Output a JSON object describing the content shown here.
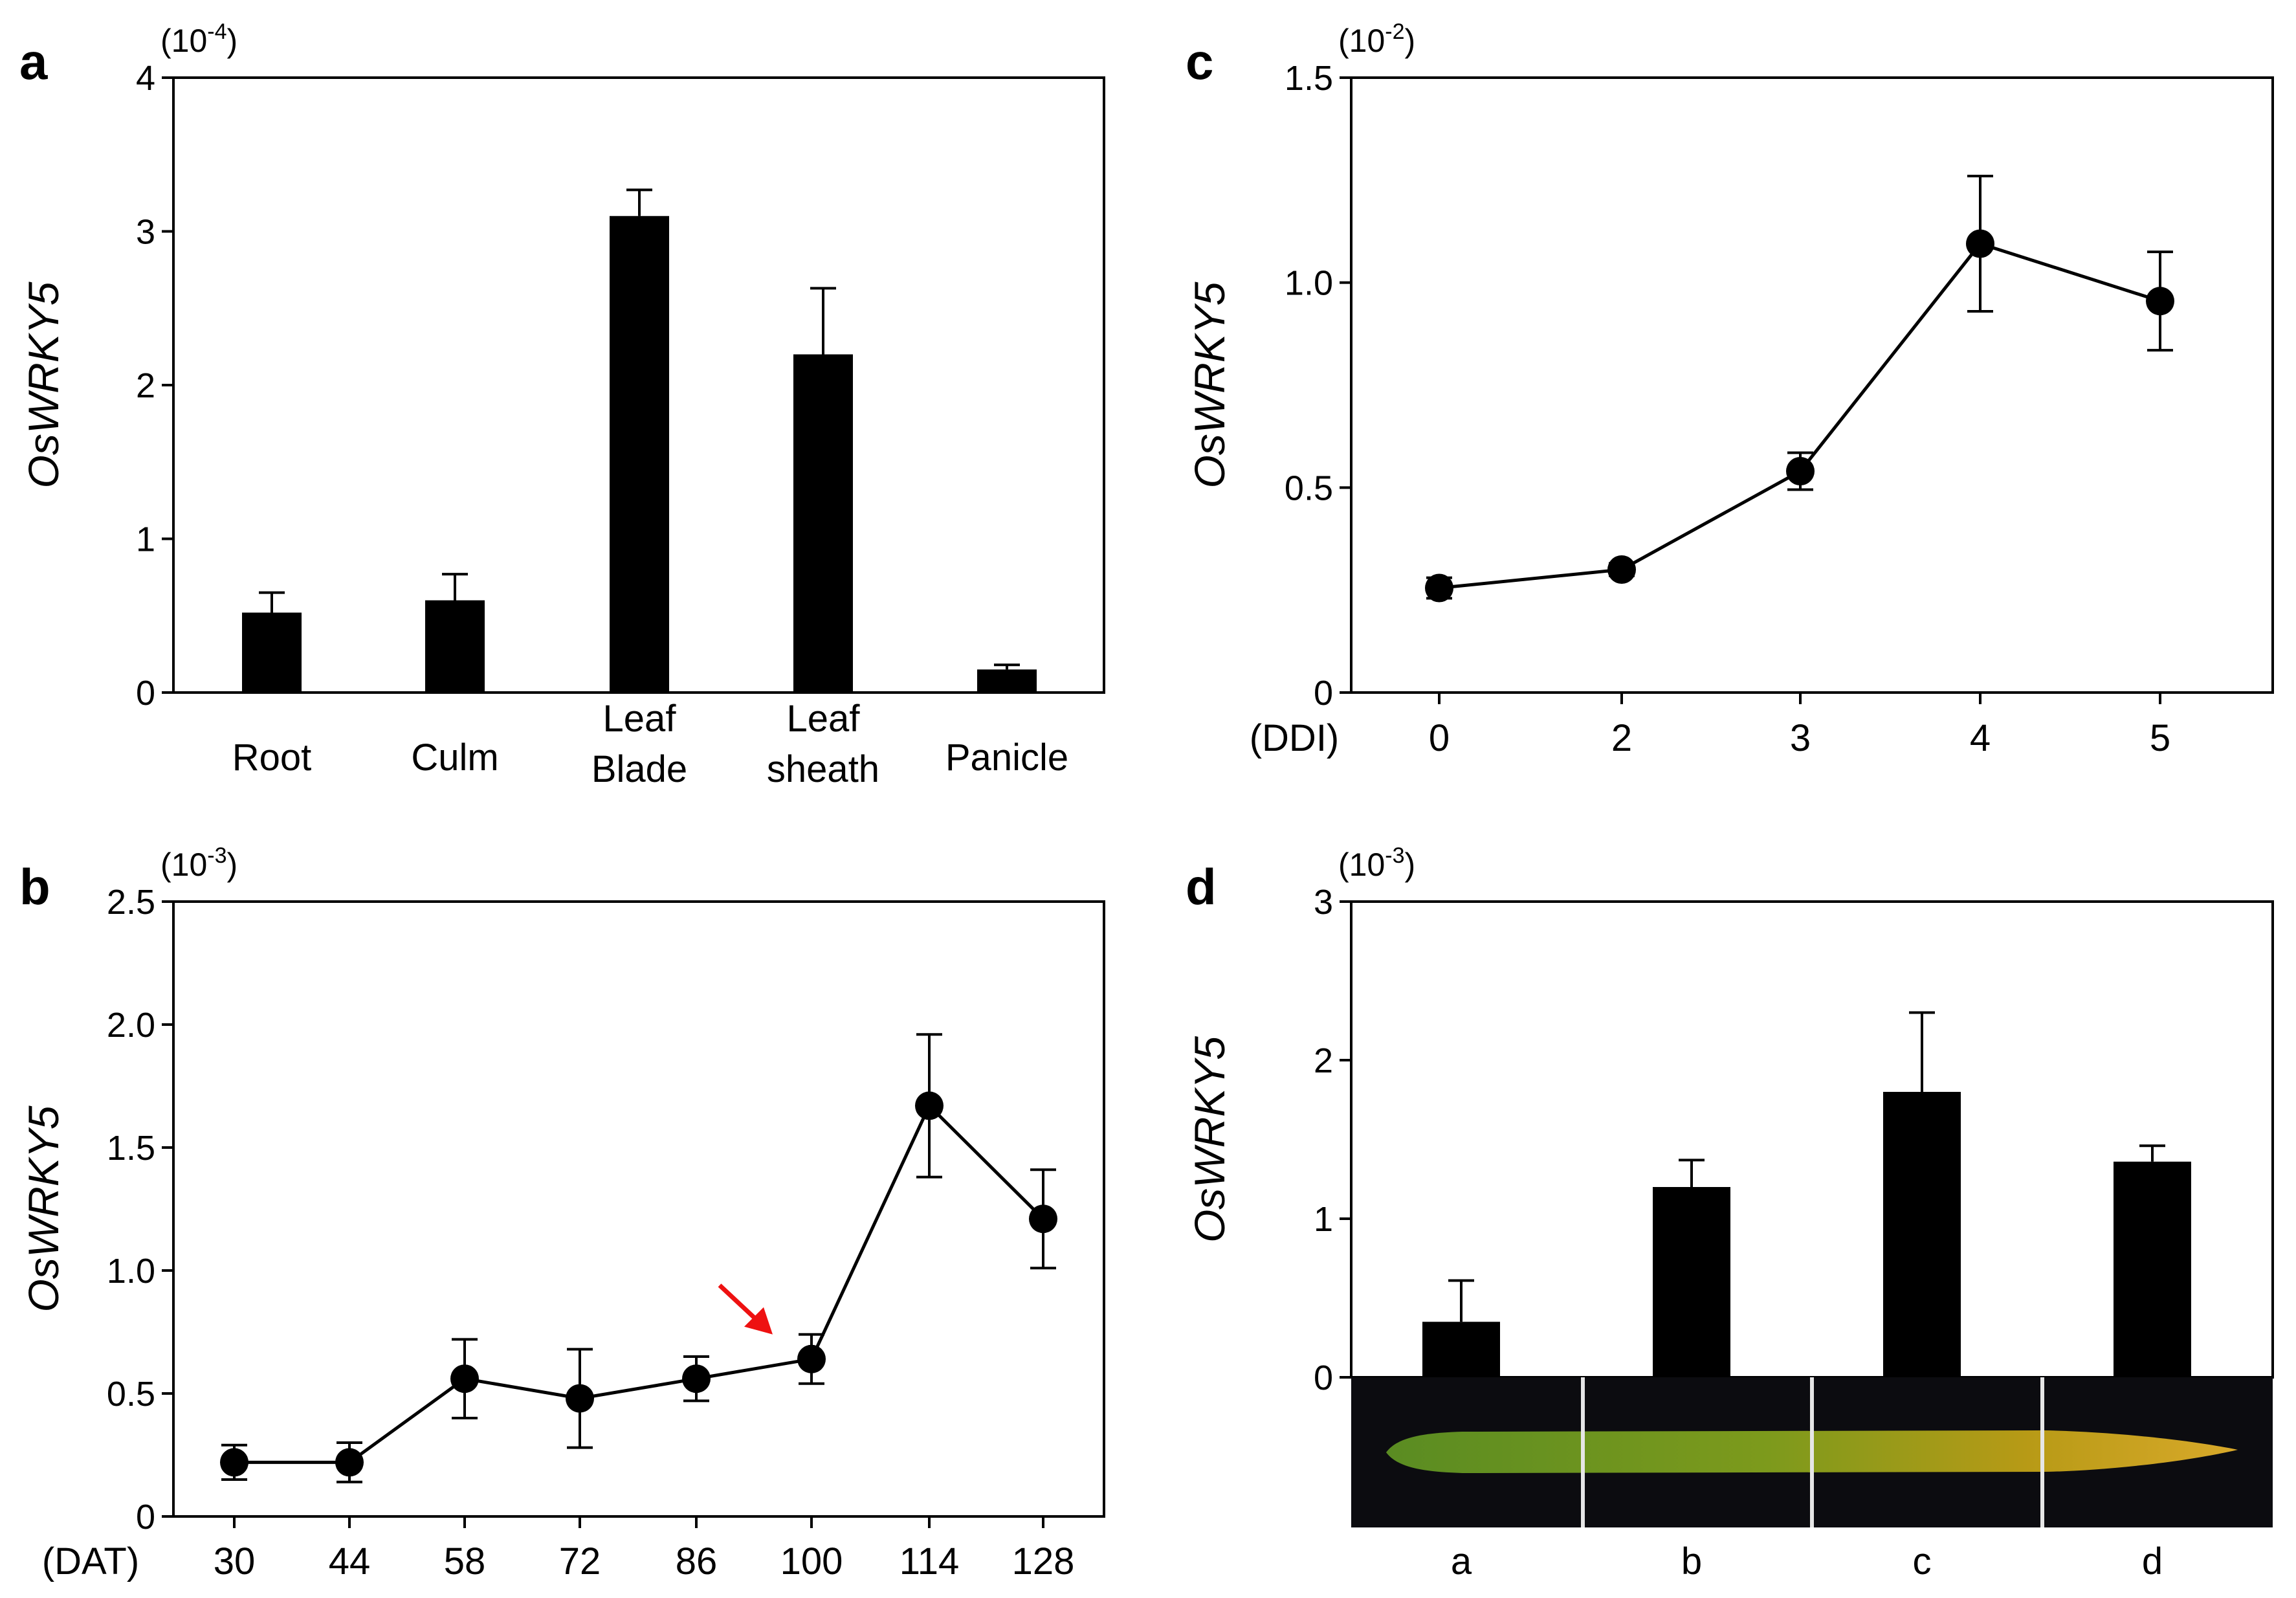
{
  "chart_data": [
    {
      "panel": "a",
      "type": "bar",
      "ylabel": "OsWRKY5",
      "yunit": "(10-4)",
      "unit_base": "10",
      "unit_exp": "-4",
      "ylim": [
        0,
        4
      ],
      "yticks": [
        "0",
        "1",
        "2",
        "3",
        "4"
      ],
      "categories": [
        "Root",
        "Culm",
        "Leaf\nBlade",
        "Leaf\nsheath",
        "Panicle"
      ],
      "values": [
        0.52,
        0.6,
        3.1,
        2.2,
        0.15
      ],
      "errors": [
        0.13,
        0.17,
        0.17,
        0.43,
        0.03
      ]
    },
    {
      "panel": "b",
      "type": "line",
      "ylabel": "OsWRKY5",
      "yunit": "(10-3)",
      "unit_base": "10",
      "unit_exp": "-3",
      "xlabel": "(DAT)",
      "ylim": [
        0,
        2.5
      ],
      "yticks": [
        "0",
        "0.5",
        "1.0",
        "1.5",
        "2.0",
        "2.5"
      ],
      "x": [
        "30",
        "44",
        "58",
        "72",
        "86",
        "100",
        "114",
        "128"
      ],
      "values": [
        0.22,
        0.22,
        0.56,
        0.48,
        0.56,
        0.64,
        1.67,
        1.21
      ],
      "errors": [
        0.07,
        0.08,
        0.16,
        0.2,
        0.09,
        0.1,
        0.29,
        0.2
      ],
      "annotation": {
        "type": "red-arrow",
        "target_x": "100"
      }
    },
    {
      "panel": "c",
      "type": "line",
      "ylabel": "OsWRKY5",
      "yunit": "(10-2)",
      "unit_base": "10",
      "unit_exp": "-2",
      "xlabel": "(DDI)",
      "ylim": [
        0,
        1.5
      ],
      "yticks": [
        "0",
        "0.5",
        "1.0",
        "1.5"
      ],
      "x": [
        "0",
        "2",
        "3",
        "4",
        "5"
      ],
      "values": [
        0.255,
        0.3,
        0.54,
        1.095,
        0.955
      ],
      "errors": [
        0.025,
        0.015,
        0.045,
        0.165,
        0.12
      ]
    },
    {
      "panel": "d",
      "type": "bar",
      "ylabel": "OsWRKY5",
      "yunit": "(10-3)",
      "unit_base": "10",
      "unit_exp": "-3",
      "ylim": [
        0,
        3
      ],
      "yticks": [
        "0",
        "1",
        "2",
        "3"
      ],
      "categories": [
        "a",
        "b",
        "c",
        "d"
      ],
      "values": [
        0.35,
        1.2,
        1.8,
        1.36
      ],
      "errors": [
        0.26,
        0.17,
        0.5,
        0.1
      ]
    }
  ]
}
